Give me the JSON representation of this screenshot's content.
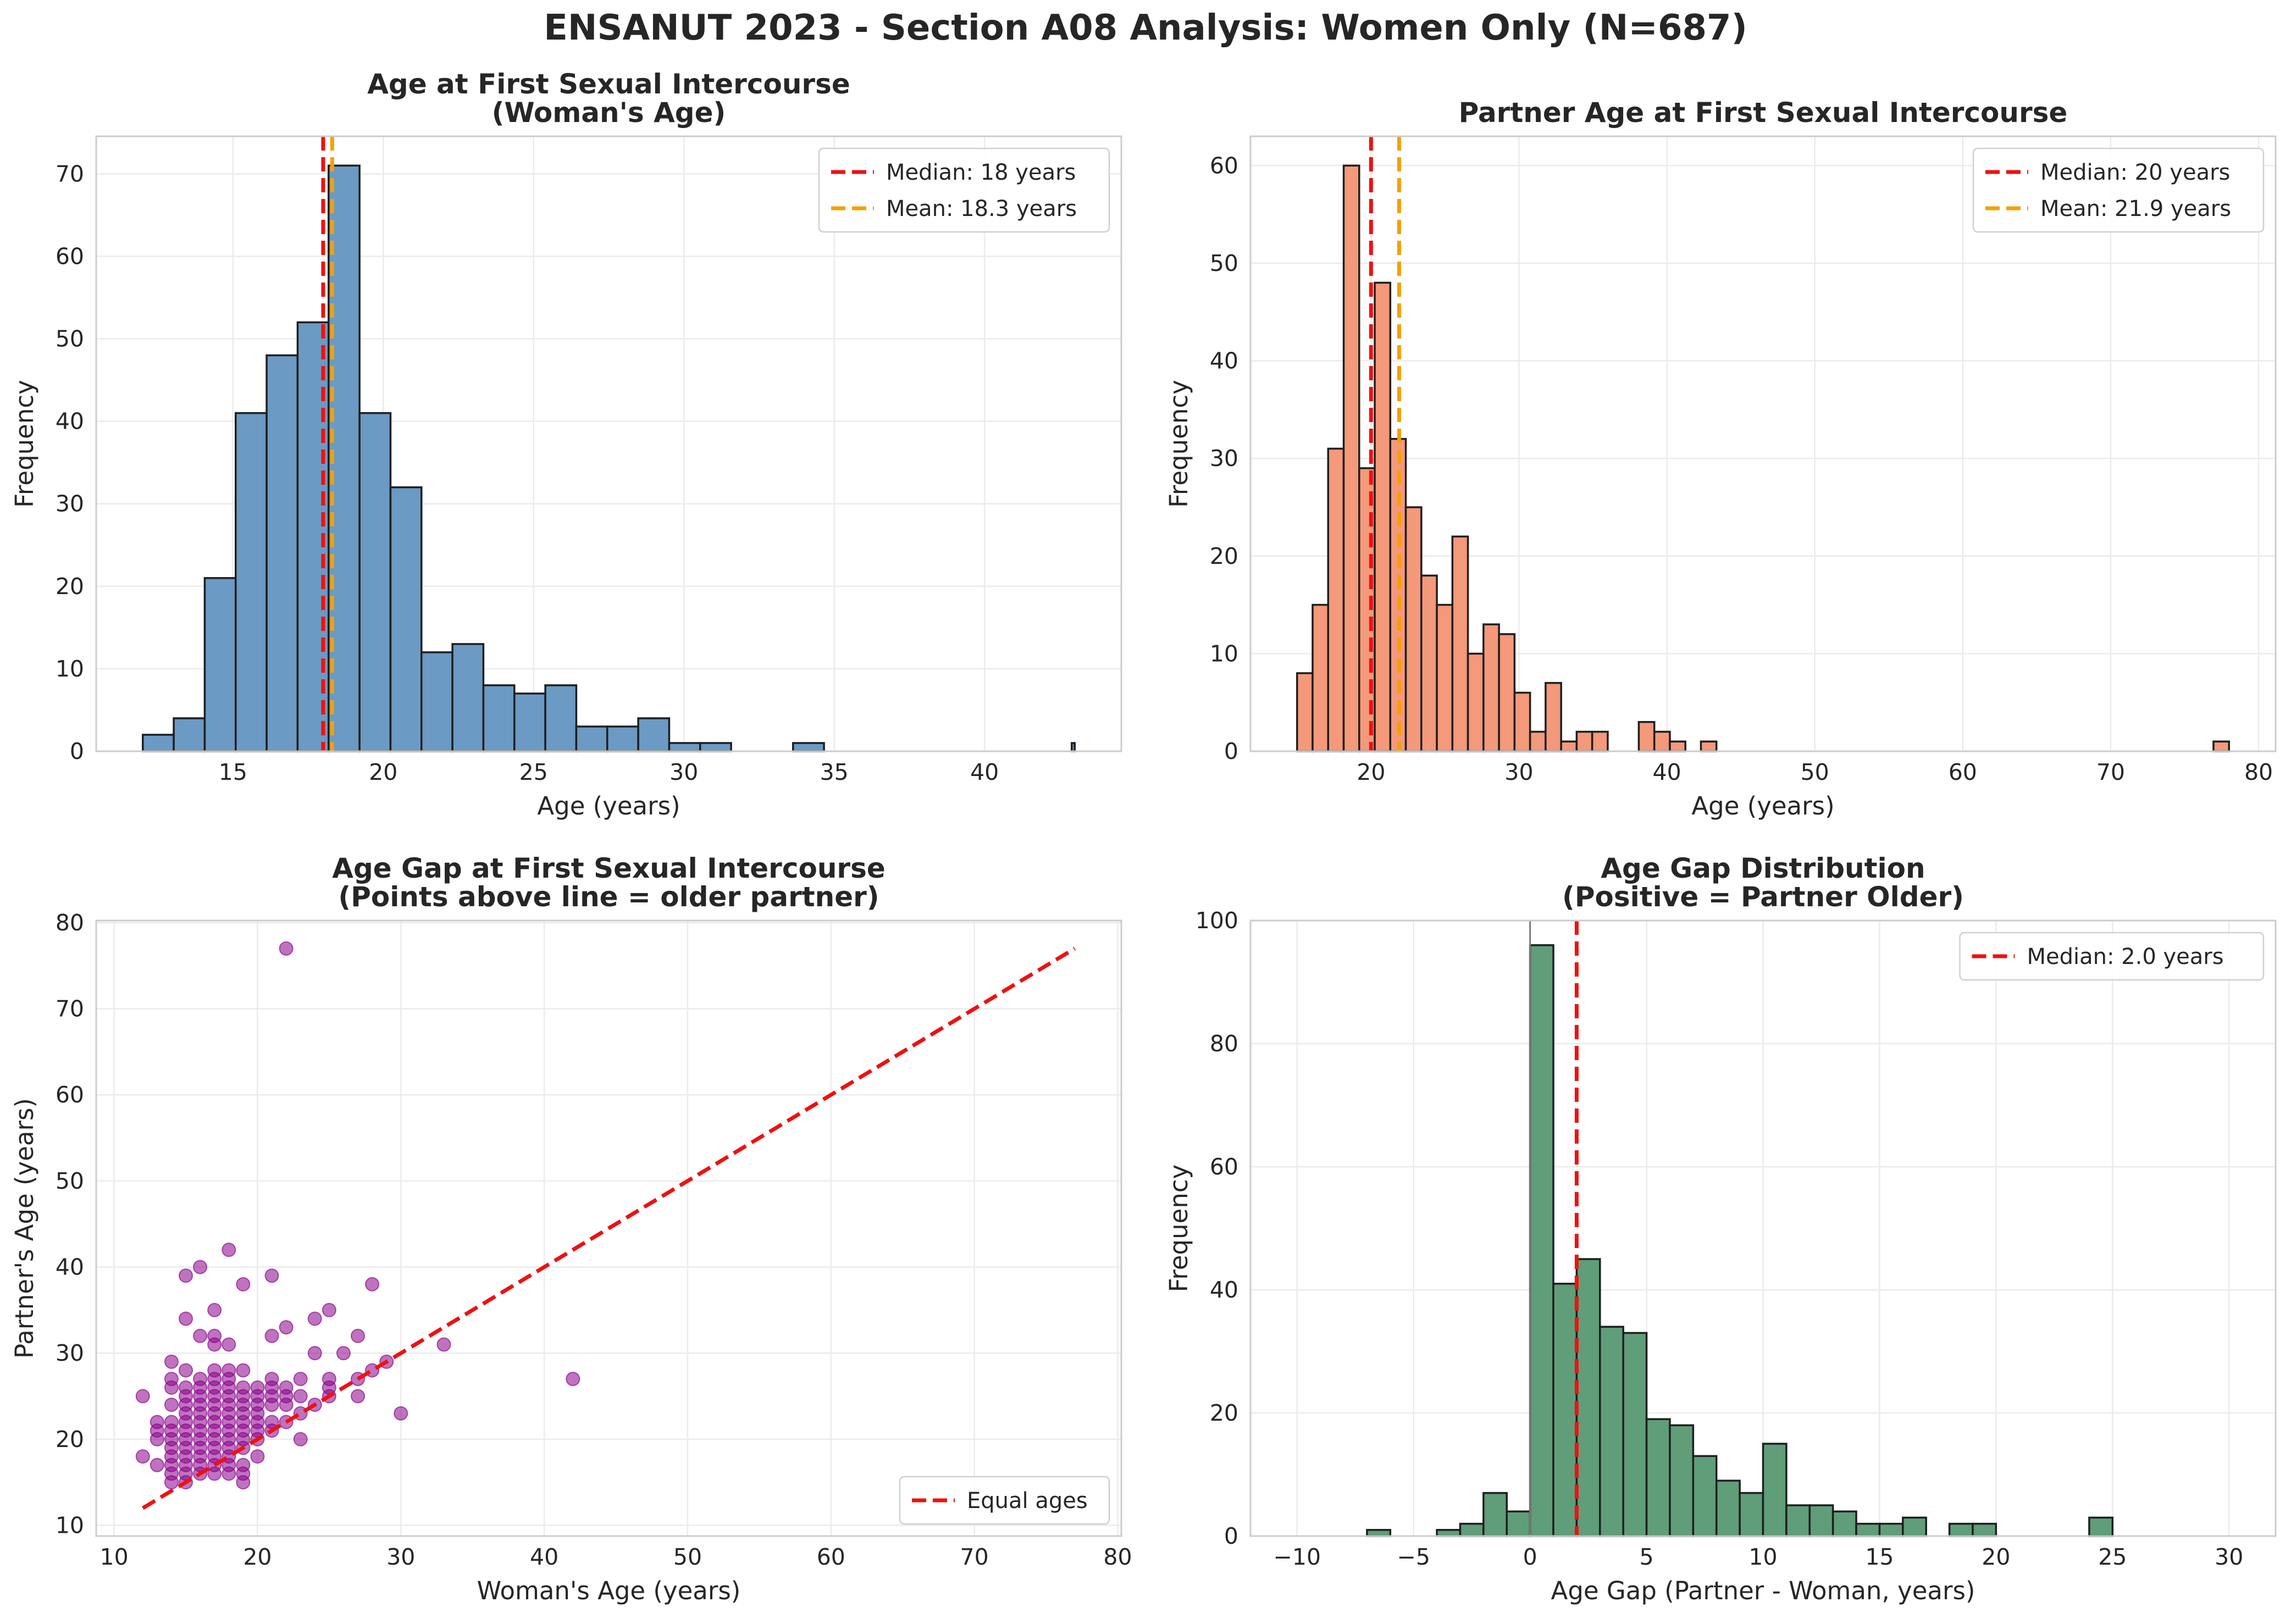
{
  "figure": {
    "title": "ENSANUT 2023 - Section A08 Analysis: Women Only (N=687)"
  },
  "chart_data": [
    {
      "type": "bar",
      "title": "Age at First Sexual Intercourse\n(Woman's Age)",
      "xlabel": "Age (years)",
      "ylabel": "Frequency",
      "xlim": [
        10.45,
        44.55
      ],
      "ylim": [
        0,
        74.55
      ],
      "xticks": [
        15,
        20,
        25,
        30,
        35,
        40
      ],
      "yticks": [
        0,
        10,
        20,
        30,
        40,
        50,
        60,
        70
      ],
      "grid": true,
      "legend_position": "top-right",
      "bar_color": "#6b9ac4",
      "bin_edges": [
        12.0,
        13.03,
        14.06,
        15.09,
        16.12,
        17.15,
        18.18,
        19.21,
        20.24,
        21.27,
        22.3,
        23.33,
        24.36,
        25.39,
        26.42,
        27.45,
        28.48,
        29.51,
        30.54,
        31.57,
        32.6,
        33.63,
        34.66,
        35.69,
        36.72,
        37.75,
        38.78,
        39.81,
        40.84,
        41.87,
        42.9,
        43.0
      ],
      "values": [
        2,
        4,
        21,
        41,
        48,
        52,
        71,
        41,
        32,
        12,
        13,
        8,
        7,
        8,
        3,
        3,
        4,
        1,
        1,
        0,
        0,
        1,
        0,
        0,
        0,
        0,
        0,
        0,
        0,
        0,
        1
      ],
      "reference_lines": [
        {
          "label": "Median: 18 years",
          "x": 18.0,
          "color": "#ee1111"
        },
        {
          "label": "Mean: 18.3 years",
          "x": 18.3,
          "color": "#f5a000"
        }
      ]
    },
    {
      "type": "bar",
      "title": "Partner Age at First Sexual Intercourse",
      "xlabel": "Age (years)",
      "ylabel": "Frequency",
      "xlim": [
        11.85,
        81.15
      ],
      "ylim": [
        0,
        63
      ],
      "xticks": [
        20,
        30,
        40,
        50,
        60,
        70,
        80
      ],
      "yticks": [
        0,
        10,
        20,
        30,
        40,
        50,
        60
      ],
      "grid": true,
      "legend_position": "top-right",
      "bar_color": "#f4997a",
      "bin_edges": [
        15.0,
        16.05,
        17.1,
        18.15,
        19.2,
        20.25,
        21.3,
        22.35,
        23.4,
        24.45,
        25.5,
        26.55,
        27.6,
        28.65,
        29.7,
        30.75,
        31.8,
        32.85,
        33.9,
        34.95,
        36.0,
        37.05,
        38.1,
        39.15,
        40.2,
        41.25,
        42.3,
        43.35
      ],
      "values": [
        8,
        15,
        31,
        60,
        29,
        48,
        32,
        25,
        18,
        15,
        22,
        10,
        13,
        12,
        6,
        2,
        7,
        1,
        2,
        2,
        0,
        0,
        3,
        2,
        1,
        0,
        1
      ],
      "outlier_bin": {
        "x0": 76.95,
        "x1": 78.0,
        "value": 1
      },
      "reference_lines": [
        {
          "label": "Median: 20 years",
          "x": 20.0,
          "color": "#ee1111"
        },
        {
          "label": "Mean: 21.9 years",
          "x": 21.9,
          "color": "#f5a000"
        }
      ]
    },
    {
      "type": "scatter",
      "title": "Age Gap at First Sexual Intercourse\n(Points above line = older partner)",
      "xlabel": "Woman's Age (years)",
      "ylabel": "Partner's Age (years)",
      "xlim": [
        8.75,
        80.25
      ],
      "ylim": [
        8.75,
        80.25
      ],
      "xticks": [
        10,
        20,
        30,
        40,
        50,
        60,
        70,
        80
      ],
      "yticks": [
        10,
        20,
        30,
        40,
        50,
        60,
        70,
        80
      ],
      "grid": true,
      "legend_position": "bottom-right",
      "point_color": "#8b008b",
      "points": [
        [
          22,
          77
        ],
        [
          18,
          42
        ],
        [
          16,
          40
        ],
        [
          42,
          27
        ],
        [
          15,
          39
        ],
        [
          21,
          39
        ],
        [
          19,
          38
        ],
        [
          28,
          38
        ],
        [
          17,
          35
        ],
        [
          25,
          35
        ],
        [
          15,
          34
        ],
        [
          24,
          34
        ],
        [
          22,
          33
        ],
        [
          33,
          31
        ],
        [
          16,
          32
        ],
        [
          17,
          32
        ],
        [
          21,
          32
        ],
        [
          27,
          32
        ],
        [
          14,
          29
        ],
        [
          17,
          31
        ],
        [
          18,
          31
        ],
        [
          24,
          30
        ],
        [
          26,
          30
        ],
        [
          29,
          29
        ],
        [
          15,
          28
        ],
        [
          17,
          28
        ],
        [
          18,
          28
        ],
        [
          19,
          28
        ],
        [
          28,
          28
        ],
        [
          14,
          27
        ],
        [
          16,
          27
        ],
        [
          17,
          27
        ],
        [
          18,
          27
        ],
        [
          21,
          27
        ],
        [
          23,
          27
        ],
        [
          25,
          27
        ],
        [
          27,
          27
        ],
        [
          14,
          26
        ],
        [
          15,
          26
        ],
        [
          16,
          26
        ],
        [
          17,
          26
        ],
        [
          18,
          26
        ],
        [
          19,
          26
        ],
        [
          20,
          26
        ],
        [
          21,
          26
        ],
        [
          22,
          26
        ],
        [
          25,
          26
        ],
        [
          16,
          25
        ],
        [
          12,
          25
        ],
        [
          15,
          25
        ],
        [
          17,
          25
        ],
        [
          18,
          25
        ],
        [
          19,
          25
        ],
        [
          20,
          25
        ],
        [
          21,
          25
        ],
        [
          22,
          25
        ],
        [
          23,
          25
        ],
        [
          25,
          25
        ],
        [
          27,
          25
        ],
        [
          14,
          24
        ],
        [
          15,
          24
        ],
        [
          16,
          24
        ],
        [
          17,
          24
        ],
        [
          18,
          24
        ],
        [
          19,
          24
        ],
        [
          20,
          24
        ],
        [
          21,
          24
        ],
        [
          22,
          24
        ],
        [
          24,
          24
        ],
        [
          15,
          23
        ],
        [
          16,
          23
        ],
        [
          17,
          23
        ],
        [
          18,
          23
        ],
        [
          19,
          23
        ],
        [
          20,
          23
        ],
        [
          23,
          23
        ],
        [
          30,
          23
        ],
        [
          13,
          22
        ],
        [
          14,
          22
        ],
        [
          15,
          22
        ],
        [
          16,
          22
        ],
        [
          17,
          22
        ],
        [
          18,
          22
        ],
        [
          19,
          22
        ],
        [
          20,
          22
        ],
        [
          21,
          22
        ],
        [
          22,
          22
        ],
        [
          13,
          21
        ],
        [
          14,
          21
        ],
        [
          15,
          21
        ],
        [
          16,
          21
        ],
        [
          17,
          21
        ],
        [
          18,
          21
        ],
        [
          19,
          21
        ],
        [
          20,
          21
        ],
        [
          21,
          21
        ],
        [
          13,
          20
        ],
        [
          14,
          20
        ],
        [
          15,
          20
        ],
        [
          16,
          20
        ],
        [
          17,
          20
        ],
        [
          18,
          20
        ],
        [
          19,
          20
        ],
        [
          20,
          20
        ],
        [
          23,
          20
        ],
        [
          12,
          18
        ],
        [
          14,
          19
        ],
        [
          15,
          19
        ],
        [
          16,
          19
        ],
        [
          17,
          19
        ],
        [
          18,
          19
        ],
        [
          19,
          19
        ],
        [
          13,
          17
        ],
        [
          14,
          18
        ],
        [
          15,
          18
        ],
        [
          16,
          18
        ],
        [
          17,
          18
        ],
        [
          18,
          18
        ],
        [
          20,
          18
        ],
        [
          14,
          17
        ],
        [
          15,
          17
        ],
        [
          16,
          17
        ],
        [
          17,
          17
        ],
        [
          18,
          17
        ],
        [
          19,
          17
        ],
        [
          14,
          16
        ],
        [
          15,
          16
        ],
        [
          16,
          16
        ],
        [
          17,
          16
        ],
        [
          18,
          16
        ],
        [
          19,
          16
        ],
        [
          14,
          15
        ],
        [
          15,
          15
        ],
        [
          19,
          15
        ]
      ],
      "reference_lines": [
        {
          "label": "Equal ages",
          "from": [
            12,
            12
          ],
          "to": [
            77,
            77
          ],
          "color": "#ee1111"
        }
      ]
    },
    {
      "type": "bar",
      "title": "Age Gap Distribution\n(Positive = Partner Older)",
      "xlabel": "Age Gap (Partner - Woman, years)",
      "ylabel": "Frequency",
      "xlim": [
        -12.0,
        32.0
      ],
      "ylim": [
        0,
        100
      ],
      "xticks": [
        -10,
        -5,
        0,
        5,
        10,
        15,
        20,
        25,
        30
      ],
      "yticks": [
        0,
        20,
        40,
        60,
        80,
        100
      ],
      "grid": true,
      "legend_position": "top-right",
      "bar_color": "#5f9e79",
      "bin_edges": [
        -10,
        -9,
        -8,
        -7,
        -6,
        -5,
        -4,
        -3,
        -2,
        -1,
        0,
        1,
        2,
        3,
        4,
        5,
        6,
        7,
        8,
        9,
        10,
        11,
        12,
        13,
        14,
        15,
        16,
        17,
        18,
        19,
        20,
        21,
        22,
        23,
        24,
        25,
        26,
        27,
        28,
        29,
        30
      ],
      "values": [
        0,
        0,
        0,
        1,
        0,
        0,
        1,
        2,
        7,
        4,
        96,
        41,
        45,
        34,
        33,
        19,
        18,
        13,
        9,
        7,
        15,
        5,
        5,
        4,
        2,
        2,
        3,
        0,
        2,
        2,
        0,
        0,
        0,
        0,
        3,
        0,
        0,
        0,
        0,
        0
      ],
      "reference_lines": [
        {
          "label": "Median: 2.0 years",
          "x": 2.0,
          "color": "#ee1111"
        },
        {
          "label": "",
          "x": 0.0,
          "color": "#7a7a7a"
        }
      ]
    }
  ]
}
